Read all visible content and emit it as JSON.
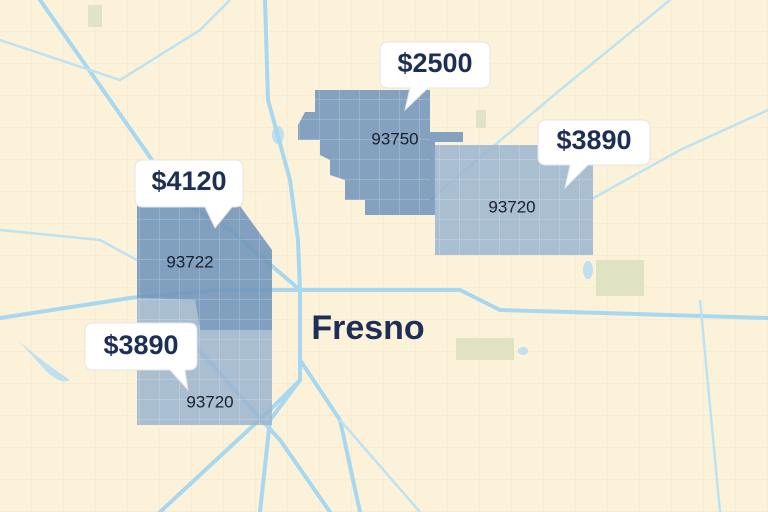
{
  "map": {
    "city_label": "Fresno",
    "regions": [
      {
        "zip": "93750",
        "price": "$2500"
      },
      {
        "zip": "93720",
        "price": "$3890"
      },
      {
        "zip": "93722",
        "price": "$4120"
      },
      {
        "zip": "93720",
        "price": "$3890"
      }
    ]
  }
}
